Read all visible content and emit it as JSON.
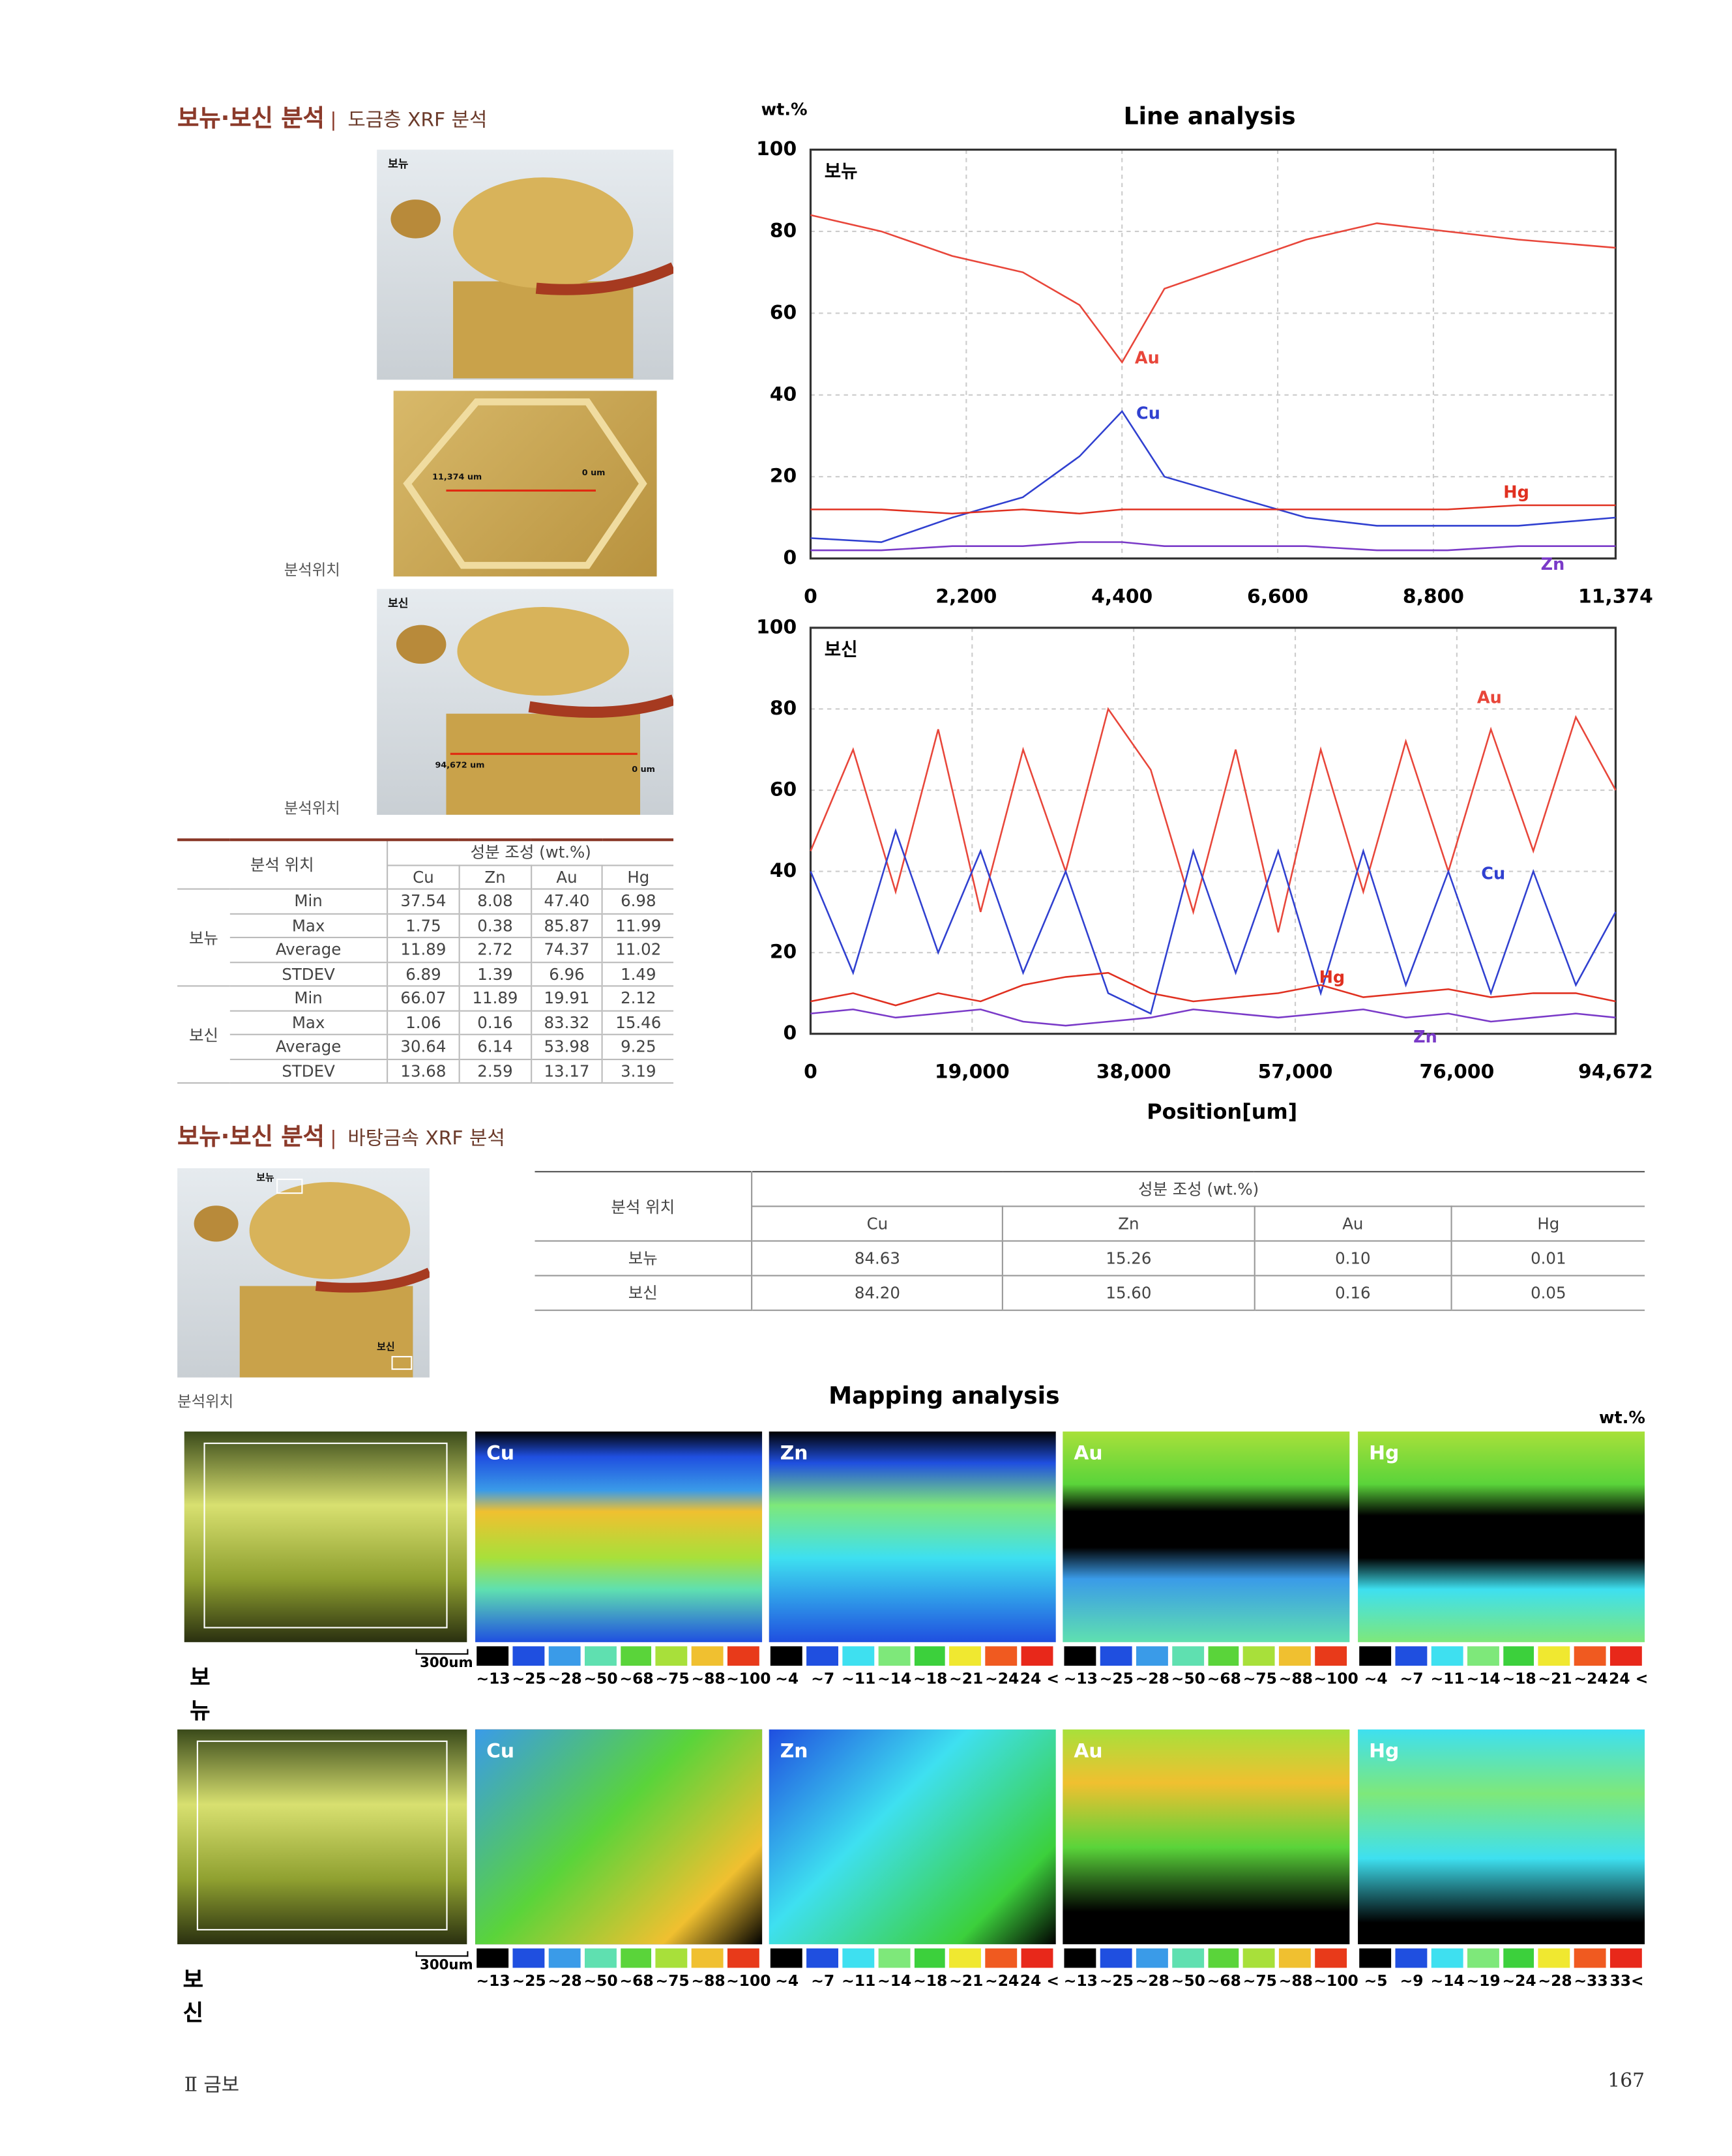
{
  "section1": {
    "title": "보뉴·보신 분석",
    "subtitle": "도금층 XRF 분석"
  },
  "photos": {
    "bonyu_label": "보뉴",
    "line1_start": "11,374 um",
    "line1_end": "0 um",
    "caption1": "분석위치",
    "bosin_label": "보신",
    "line2_start": "94,672 um",
    "line2_end": "0 um",
    "caption2": "분석위치"
  },
  "table1": {
    "header": {
      "position": "분석 위치",
      "composition": "성분 조성 (wt.%)",
      "elements": [
        "Cu",
        "Zn",
        "Au",
        "Hg"
      ]
    },
    "groups": [
      {
        "name": "보뉴",
        "rows": [
          [
            "Min",
            "37.54",
            "8.08",
            "47.40",
            "6.98"
          ],
          [
            "Max",
            "1.75",
            "0.38",
            "85.87",
            "11.99"
          ],
          [
            "Average",
            "11.89",
            "2.72",
            "74.37",
            "11.02"
          ],
          [
            "STDEV",
            "6.89",
            "1.39",
            "6.96",
            "1.49"
          ]
        ]
      },
      {
        "name": "보신",
        "rows": [
          [
            "Min",
            "66.07",
            "11.89",
            "19.91",
            "2.12"
          ],
          [
            "Max",
            "1.06",
            "0.16",
            "83.32",
            "15.46"
          ],
          [
            "Average",
            "30.64",
            "6.14",
            "53.98",
            "9.25"
          ],
          [
            "STDEV",
            "13.68",
            "2.59",
            "13.17",
            "3.19"
          ]
        ]
      }
    ]
  },
  "line_analysis": {
    "title": "Line analysis",
    "unit": "wt.%",
    "x_label": "Position[um]"
  },
  "chart_data": [
    {
      "type": "line",
      "label": "보뉴",
      "x": [
        0,
        1000,
        2000,
        3000,
        3800,
        4400,
        5000,
        6000,
        7000,
        8000,
        9000,
        10000,
        11374
      ],
      "xlim": [
        0,
        11374
      ],
      "xticks": [
        0,
        {
          "value": 2200,
          "label": "2,200"
        },
        {
          "value": 4400,
          "label": "4,400"
        },
        {
          "value": 6600,
          "label": "6,600"
        },
        {
          "value": 8800,
          "label": "8,800"
        },
        {
          "value": 11374,
          "label": "11,374"
        }
      ],
      "ylim": [
        0,
        100
      ],
      "yticks": [
        0,
        20,
        40,
        60,
        80,
        100
      ],
      "grid": true,
      "series": [
        {
          "name": "Au",
          "color": "#e8463a",
          "values": [
            84,
            80,
            74,
            70,
            62,
            48,
            66,
            72,
            78,
            82,
            80,
            78,
            76
          ]
        },
        {
          "name": "Cu",
          "color": "#3040d0",
          "values": [
            5,
            4,
            10,
            15,
            25,
            36,
            20,
            15,
            10,
            8,
            8,
            8,
            10
          ]
        },
        {
          "name": "Hg",
          "color": "#e03020",
          "values": [
            12,
            12,
            11,
            12,
            11,
            12,
            12,
            12,
            12,
            12,
            12,
            13,
            13
          ]
        },
        {
          "name": "Zn",
          "color": "#7a3ac8",
          "values": [
            2,
            2,
            3,
            3,
            4,
            4,
            3,
            3,
            3,
            2,
            2,
            3,
            3
          ]
        }
      ]
    },
    {
      "type": "line",
      "label": "보신",
      "x": [
        0,
        5000,
        10000,
        15000,
        20000,
        25000,
        30000,
        35000,
        40000,
        45000,
        50000,
        55000,
        60000,
        65000,
        70000,
        75000,
        80000,
        85000,
        90000,
        94672
      ],
      "xlim": [
        0,
        94672
      ],
      "xticks": [
        0,
        {
          "value": 19000,
          "label": "19,000"
        },
        {
          "value": 38000,
          "label": "38,000"
        },
        {
          "value": 57000,
          "label": "57,000"
        },
        {
          "value": 76000,
          "label": "76,000"
        },
        {
          "value": 94672,
          "label": "94,672"
        }
      ],
      "ylim": [
        0,
        100
      ],
      "yticks": [
        0,
        20,
        40,
        60,
        80,
        100
      ],
      "grid": true,
      "series": [
        {
          "name": "Au",
          "color": "#e8463a",
          "values": [
            45,
            70,
            35,
            75,
            30,
            70,
            40,
            80,
            65,
            30,
            70,
            25,
            70,
            35,
            72,
            40,
            75,
            45,
            78,
            60
          ]
        },
        {
          "name": "Cu",
          "color": "#3040d0",
          "values": [
            40,
            15,
            50,
            20,
            45,
            15,
            40,
            10,
            5,
            45,
            15,
            45,
            10,
            45,
            12,
            40,
            10,
            40,
            12,
            30
          ]
        },
        {
          "name": "Hg",
          "color": "#e03020",
          "values": [
            8,
            10,
            7,
            10,
            8,
            12,
            14,
            15,
            10,
            8,
            9,
            10,
            12,
            9,
            10,
            11,
            9,
            10,
            10,
            8
          ]
        },
        {
          "name": "Zn",
          "color": "#7a3ac8",
          "values": [
            5,
            6,
            4,
            5,
            6,
            3,
            2,
            3,
            4,
            6,
            5,
            4,
            5,
            6,
            4,
            5,
            3,
            4,
            5,
            4
          ]
        }
      ]
    }
  ],
  "section2": {
    "title": "보뉴·보신 분석",
    "subtitle": "바탕금속 XRF 분석"
  },
  "photo2": {
    "marker1": "보뉴",
    "marker2": "보신",
    "caption": "분석위치"
  },
  "table2": {
    "header": {
      "position": "분석 위치",
      "composition": "성분 조성 (wt.%)",
      "elements": [
        "Cu",
        "Zn",
        "Au",
        "Hg"
      ]
    },
    "rows": [
      [
        "보뉴",
        "84.63",
        "15.26",
        "0.10",
        "0.01"
      ],
      [
        "보신",
        "84.20",
        "15.60",
        "0.16",
        "0.05"
      ]
    ]
  },
  "mapping": {
    "title": "Mapping analysis",
    "unit": "wt.%",
    "rows": [
      {
        "label": "보뉴",
        "scale": "300um",
        "panels": [
          {
            "element": "Cu",
            "legend": {
              "colors": [
                "#000000",
                "#1f4fe0",
                "#3a9be8",
                "#5fe0b0",
                "#5ad43a",
                "#a8e03a",
                "#f0c030",
                "#e83a1a"
              ],
              "labels": [
                "~13",
                "~25",
                "~28",
                "~50",
                "~68",
                "~75",
                "~88",
                "~100"
              ]
            }
          },
          {
            "element": "Zn",
            "legend": {
              "colors": [
                "#000000",
                "#1f4fe0",
                "#3ee0f0",
                "#7ee87a",
                "#3cd03c",
                "#f0e830",
                "#f05a20",
                "#e8281a"
              ],
              "labels": [
                "~4",
                "~7",
                "~11",
                "~14",
                "~18",
                "~21",
                "~24",
                "24 <"
              ]
            }
          },
          {
            "element": "Au",
            "legend": {
              "colors": [
                "#000000",
                "#1f4fe0",
                "#3a9be8",
                "#5fe0b0",
                "#5ad43a",
                "#a8e03a",
                "#f0c030",
                "#e83a1a"
              ],
              "labels": [
                "~13",
                "~25",
                "~28",
                "~50",
                "~68",
                "~75",
                "~88",
                "~100"
              ]
            }
          },
          {
            "element": "Hg",
            "legend": {
              "colors": [
                "#000000",
                "#1f4fe0",
                "#3ee0f0",
                "#7ee87a",
                "#3cd03c",
                "#f0e830",
                "#f05a20",
                "#e8281a"
              ],
              "labels": [
                "~4",
                "~7",
                "~11",
                "~14",
                "~18",
                "~21",
                "~24",
                "24 <"
              ]
            }
          }
        ]
      },
      {
        "label": "보신",
        "scale": "300um",
        "panels": [
          {
            "element": "Cu",
            "legend": {
              "colors": [
                "#000000",
                "#1f4fe0",
                "#3a9be8",
                "#5fe0b0",
                "#5ad43a",
                "#a8e03a",
                "#f0c030",
                "#e83a1a"
              ],
              "labels": [
                "~13",
                "~25",
                "~28",
                "~50",
                "~68",
                "~75",
                "~88",
                "~100"
              ]
            }
          },
          {
            "element": "Zn",
            "legend": {
              "colors": [
                "#000000",
                "#1f4fe0",
                "#3ee0f0",
                "#7ee87a",
                "#3cd03c",
                "#f0e830",
                "#f05a20",
                "#e8281a"
              ],
              "labels": [
                "~4",
                "~7",
                "~11",
                "~14",
                "~18",
                "~21",
                "~24",
                "24 <"
              ]
            }
          },
          {
            "element": "Au",
            "legend": {
              "colors": [
                "#000000",
                "#1f4fe0",
                "#3a9be8",
                "#5fe0b0",
                "#5ad43a",
                "#a8e03a",
                "#f0c030",
                "#e83a1a"
              ],
              "labels": [
                "~13",
                "~25",
                "~28",
                "~50",
                "~68",
                "~75",
                "~88",
                "~100"
              ]
            }
          },
          {
            "element": "Hg",
            "legend": {
              "colors": [
                "#000000",
                "#1f4fe0",
                "#3ee0f0",
                "#7ee87a",
                "#3cd03c",
                "#f0e830",
                "#f05a20",
                "#e8281a"
              ],
              "labels": [
                "~5",
                "~9",
                "~14",
                "~19",
                "~24",
                "~28",
                "~33",
                "33<"
              ]
            }
          }
        ]
      }
    ]
  },
  "footer": {
    "section": "Ⅱ 금보",
    "page": "167"
  }
}
